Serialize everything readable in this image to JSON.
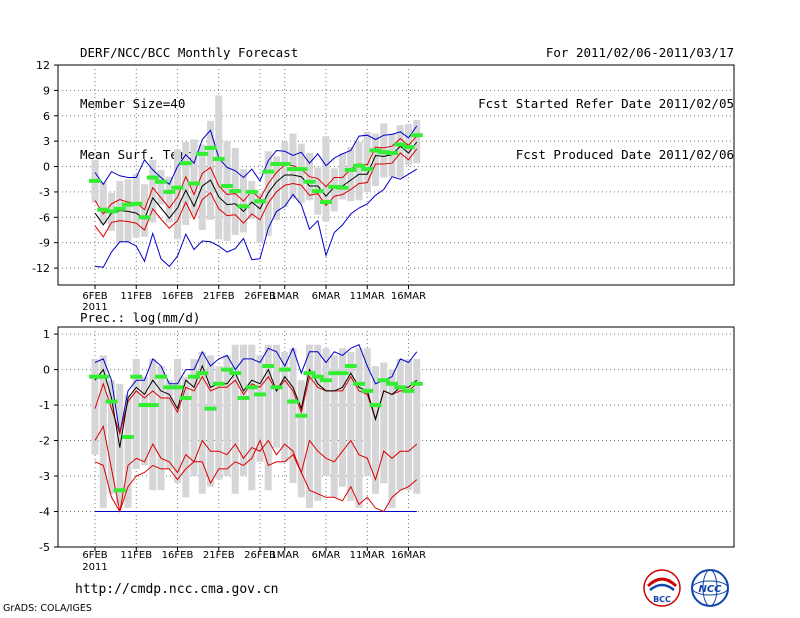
{
  "header": {
    "title": "DERF/NCC/BCC Monthly Forecast",
    "member_size": "Member Size=40",
    "variable": "Mean Surf. Temp.: °C",
    "for_range": "For 2011/02/06-2011/03/17",
    "started": "Fcst Started Refer Date 2011/02/05",
    "produced": "Fcst Produced Date 2011/02/06"
  },
  "footer": {
    "url": "http://cmdp.ncc.cma.gov.cn",
    "grads": "GrADS: COLA/IGES",
    "logo_text_1": "BCC",
    "logo_text_2": "NCC"
  },
  "colors": {
    "box": "#d6d6d8",
    "median": "#33ee33",
    "mean": "#000000",
    "inner": "#dd0000",
    "outer": "#0000cc",
    "grid": "#777777"
  },
  "chart_data": [
    {
      "id": "temp",
      "type": "box-ensemble",
      "title": "",
      "ylim": [
        -14,
        12
      ],
      "yticks": [
        12,
        9,
        6,
        3,
        0,
        -3,
        -6,
        -9,
        -12
      ],
      "xticks": [
        {
          "day": 0,
          "label": "6FEB",
          "sub": "2011"
        },
        {
          "day": 5,
          "label": "11FEB"
        },
        {
          "day": 10,
          "label": "16FEB"
        },
        {
          "day": 15,
          "label": "21FEB"
        },
        {
          "day": 20,
          "label": "26FEB"
        },
        {
          "day": 23,
          "label": "1MAR"
        },
        {
          "day": 28,
          "label": "6MAR"
        },
        {
          "day": 33,
          "label": "11MAR"
        },
        {
          "day": 38,
          "label": "16MAR"
        }
      ],
      "days": 40,
      "box_low": [
        -4.3,
        -6.8,
        -7.6,
        -9.1,
        -8.9,
        -8.4,
        -8.3,
        -6.6,
        -4.5,
        -6.6,
        -8.6,
        -6.9,
        -5.8,
        -7.5,
        -6.3,
        -8.6,
        -8.8,
        -8.1,
        -7.8,
        -6.2,
        -9.0,
        -8.2,
        -6.3,
        -4.8,
        -3.8,
        -4.3,
        -4.0,
        -5.7,
        -6.5,
        -5.3,
        -3.9,
        -4.1,
        -4.0,
        -3.0,
        -2.3,
        -1.3,
        -1.2,
        -1.3,
        0.2,
        0.4
      ],
      "box_high": [
        0.8,
        -1.9,
        -3.1,
        -1.7,
        -1.5,
        -0.9,
        -2.1,
        0.8,
        -0.4,
        -1.2,
        2.0,
        2.9,
        3.2,
        2.6,
        5.4,
        8.4,
        3.0,
        2.2,
        -0.3,
        -1.7,
        -3.2,
        1.8,
        1.2,
        2.9,
        3.9,
        2.7,
        1.6,
        -0.1,
        3.6,
        -0.2,
        1.6,
        2.3,
        2.9,
        4.1,
        3.9,
        5.1,
        3.9,
        4.9,
        5.0,
        5.5
      ],
      "median": [
        -1.7,
        -5.1,
        -5.3,
        -5.0,
        -4.5,
        -4.4,
        -6.0,
        -1.3,
        -1.8,
        -3.0,
        -2.5,
        0.4,
        -2.0,
        1.5,
        2.2,
        0.9,
        -2.3,
        -2.9,
        -4.7,
        -3.0,
        -4.1,
        -0.6,
        0.3,
        0.3,
        -0.3,
        -0.3,
        -1.8,
        -2.9,
        -4.2,
        -2.4,
        -2.5,
        -0.4,
        0.1,
        -0.3,
        1.9,
        1.7,
        1.6,
        2.6,
        2.3,
        3.7
      ],
      "mean": [
        -5.5,
        -6.9,
        -5.5,
        -5.2,
        -5.3,
        -5.5,
        -6.2,
        -3.7,
        -4.9,
        -6.1,
        -4.9,
        -2.8,
        -4.7,
        -2.3,
        -1.6,
        -3.6,
        -4.5,
        -4.4,
        -5.3,
        -4.2,
        -5.0,
        -3.1,
        -1.8,
        -1.0,
        -1.0,
        -1.2,
        -2.3,
        -2.3,
        -3.5,
        -2.4,
        -2.3,
        -1.6,
        -0.9,
        -0.9,
        1.3,
        1.2,
        1.4,
        2.4,
        1.6,
        2.9
      ],
      "inner_upper": [
        -4.0,
        -5.6,
        -4.4,
        -3.9,
        -4.2,
        -4.3,
        -5.1,
        -2.5,
        -3.7,
        -4.9,
        -3.6,
        -1.2,
        -3.3,
        -0.8,
        -0.1,
        -2.3,
        -3.3,
        -3.2,
        -4.1,
        -2.9,
        -3.8,
        -2.0,
        -0.7,
        0.2,
        0.1,
        -0.3,
        -1.2,
        -1.4,
        -2.4,
        -1.3,
        -1.3,
        -0.3,
        0.3,
        0.2,
        2.3,
        2.2,
        2.4,
        3.3,
        2.5,
        3.6
      ],
      "inner_lower": [
        -7.0,
        -8.3,
        -6.6,
        -6.4,
        -6.5,
        -6.7,
        -7.5,
        -5.0,
        -6.2,
        -7.3,
        -6.4,
        -4.2,
        -6.2,
        -3.9,
        -3.1,
        -5.0,
        -5.8,
        -5.7,
        -6.7,
        -5.6,
        -6.3,
        -4.3,
        -3.0,
        -2.2,
        -2.0,
        -2.2,
        -3.4,
        -3.2,
        -4.6,
        -3.5,
        -3.3,
        -2.7,
        -2.0,
        -1.9,
        0.3,
        0.3,
        0.4,
        1.6,
        0.8,
        2.1
      ],
      "outer_upper": [
        -0.7,
        -2.1,
        -0.6,
        -1.1,
        -1.3,
        -1.3,
        0.8,
        -0.4,
        -1.3,
        -2.1,
        0.0,
        1.4,
        0.4,
        3.2,
        4.3,
        1.0,
        -0.1,
        -0.5,
        -1.3,
        -0.3,
        -1.7,
        0.7,
        1.9,
        1.8,
        1.3,
        1.7,
        0.4,
        1.5,
        0.1,
        1.0,
        1.5,
        1.9,
        3.6,
        3.7,
        3.2,
        3.7,
        3.8,
        4.1,
        3.4,
        4.8
      ],
      "outer_lower": [
        -11.8,
        -11.9,
        -10.1,
        -8.9,
        -8.9,
        -9.4,
        -11.2,
        -7.9,
        -10.9,
        -11.8,
        -10.6,
        -8.0,
        -9.8,
        -8.8,
        -8.9,
        -9.4,
        -10.1,
        -9.7,
        -8.5,
        -11.0,
        -10.9,
        -7.3,
        -5.3,
        -4.7,
        -3.3,
        -4.5,
        -7.4,
        -6.4,
        -10.5,
        -7.8,
        -6.9,
        -5.6,
        -4.9,
        -4.4,
        -3.4,
        -2.7,
        -1.2,
        -1.5,
        -0.9,
        -0.3
      ]
    },
    {
      "id": "prec",
      "type": "box-ensemble",
      "title": "Prec.: log(mm/d)",
      "ylim": [
        -5,
        1.2
      ],
      "yticks": [
        1,
        0,
        -1,
        -2,
        -3,
        -4,
        -5
      ],
      "xticks": [
        {
          "day": 0,
          "label": "6FEB",
          "sub": "2011"
        },
        {
          "day": 5,
          "label": "11FEB"
        },
        {
          "day": 10,
          "label": "16FEB"
        },
        {
          "day": 15,
          "label": "21FEB"
        },
        {
          "day": 20,
          "label": "26FEB"
        },
        {
          "day": 23,
          "label": "1MAR"
        },
        {
          "day": 28,
          "label": "6MAR"
        },
        {
          "day": 33,
          "label": "11MAR"
        },
        {
          "day": 38,
          "label": "16MAR"
        }
      ],
      "days": 40,
      "box_low": [
        -2.4,
        -3.9,
        -3.5,
        -3.8,
        -3.9,
        -2.8,
        -2.7,
        -3.4,
        -3.4,
        -2.8,
        -3.2,
        -3.6,
        -3.0,
        -3.5,
        -3.3,
        -3.1,
        -3.0,
        -3.5,
        -3.0,
        -3.4,
        -2.6,
        -3.4,
        -2.2,
        -2.6,
        -3.2,
        -3.6,
        -3.9,
        -3.7,
        -3.0,
        -3.6,
        -3.3,
        -3.7,
        -3.9,
        -3.0,
        -3.5,
        -3.2,
        -3.9,
        -3.4,
        -3.4,
        -3.5
      ],
      "box_high": [
        0.3,
        0.4,
        -0.3,
        -0.4,
        -0.7,
        0.3,
        -0.2,
        0.3,
        0.1,
        -0.3,
        0.3,
        -0.2,
        0.3,
        0.5,
        0.4,
        0.1,
        0.4,
        0.7,
        0.7,
        0.7,
        0.4,
        0.7,
        0.7,
        0.5,
        0.6,
        -0.3,
        0.7,
        0.7,
        0.6,
        0.4,
        0.6,
        0.5,
        0.6,
        0.6,
        0.1,
        0.2,
        0.0,
        0.3,
        0.3,
        0.3
      ],
      "median": [
        -0.2,
        -0.2,
        -0.9,
        -3.4,
        -1.9,
        -0.2,
        -1.0,
        -1.0,
        -0.2,
        -0.5,
        -0.5,
        -0.8,
        -0.2,
        -0.1,
        -1.1,
        -0.4,
        0.0,
        -0.1,
        -0.8,
        -0.5,
        -0.7,
        0.1,
        -0.5,
        0.0,
        -0.9,
        -1.3,
        -0.1,
        -0.2,
        -0.3,
        -0.1,
        -0.1,
        0.1,
        -0.4,
        -0.6,
        -1.0,
        -0.3,
        -0.4,
        -0.5,
        -0.6,
        -0.4
      ],
      "mean": [
        -0.3,
        0.0,
        -0.8,
        -2.2,
        -0.8,
        -0.5,
        -0.7,
        -0.3,
        -0.6,
        -0.7,
        -1.1,
        -0.3,
        -0.5,
        0.1,
        -0.5,
        -0.4,
        -0.4,
        -0.1,
        -0.6,
        -0.3,
        -0.4,
        0.0,
        -0.6,
        -0.2,
        -0.5,
        -1.1,
        0.0,
        -0.4,
        -0.6,
        -0.6,
        -0.5,
        -0.1,
        -0.5,
        -0.6,
        -1.4,
        -0.6,
        -0.7,
        -0.5,
        -0.5,
        -0.3
      ],
      "inner_upper": [
        -1.1,
        -0.4,
        -1.1,
        -1.8,
        -0.9,
        -0.6,
        -0.8,
        -0.6,
        -0.8,
        -0.8,
        -1.2,
        -0.5,
        -0.6,
        -0.2,
        -0.6,
        -0.5,
        -0.5,
        -0.3,
        -0.7,
        -0.4,
        -0.5,
        -0.2,
        -0.6,
        -0.3,
        -0.6,
        -1.2,
        -0.2,
        -0.5,
        -0.6,
        -0.6,
        -0.6,
        -0.2,
        -0.6,
        -0.7,
        -1.4,
        -0.6,
        -0.7,
        -0.6,
        -0.6,
        -0.4
      ],
      "inner_lower": [
        -2.0,
        -1.6,
        -2.8,
        -4.0,
        -2.7,
        -2.5,
        -2.6,
        -2.1,
        -2.5,
        -2.6,
        -2.9,
        -2.4,
        -2.6,
        -2.0,
        -2.3,
        -2.3,
        -2.4,
        -2.1,
        -2.5,
        -2.2,
        -2.3,
        -2.0,
        -2.4,
        -2.1,
        -2.3,
        -2.9,
        -2.0,
        -2.3,
        -2.5,
        -2.6,
        -2.3,
        -2.0,
        -2.4,
        -2.5,
        -3.1,
        -2.3,
        -2.5,
        -2.3,
        -2.3,
        -2.1
      ],
      "inner_lower2": [
        -2.6,
        -2.7,
        -3.6,
        -4.0,
        -3.3,
        -3.0,
        -2.9,
        -2.7,
        -2.8,
        -2.8,
        -3.1,
        -2.8,
        -2.6,
        -2.6,
        -3.2,
        -2.8,
        -2.8,
        -2.6,
        -2.7,
        -2.5,
        -2.0,
        -2.7,
        -2.6,
        -2.6,
        -2.4,
        -2.9,
        -3.4,
        -3.5,
        -3.6,
        -3.6,
        -3.7,
        -3.3,
        -3.8,
        -3.6,
        -3.9,
        -4.0,
        -3.6,
        -3.4,
        -3.3,
        -3.1
      ],
      "outer_upper": [
        0.2,
        0.3,
        -0.3,
        -1.8,
        -0.6,
        -0.3,
        -0.3,
        0.3,
        0.1,
        -0.4,
        -0.4,
        0.0,
        0.0,
        0.5,
        0.1,
        0.3,
        0.4,
        0.0,
        0.3,
        0.3,
        0.2,
        0.6,
        0.5,
        0.1,
        0.6,
        -0.1,
        0.5,
        0.5,
        0.2,
        0.5,
        0.4,
        0.6,
        0.7,
        0.1,
        -0.4,
        -0.3,
        -0.2,
        0.3,
        0.2,
        0.5
      ],
      "outer_lower": [
        -4.0,
        -4.0,
        -4.0,
        -4.0,
        -4.0,
        -4.0,
        -4.0,
        -4.0,
        -4.0,
        -4.0,
        -4.0,
        -4.0,
        -4.0,
        -4.0,
        -4.0,
        -4.0,
        -4.0,
        -4.0,
        -4.0,
        -4.0,
        -4.0,
        -4.0,
        -4.0,
        -4.0,
        -4.0,
        -4.0,
        -4.0,
        -4.0,
        -4.0,
        -4.0,
        -4.0,
        -4.0,
        -4.0,
        -4.0,
        -4.0,
        -4.0,
        -4.0,
        -4.0,
        -4.0,
        -4.0
      ]
    }
  ]
}
